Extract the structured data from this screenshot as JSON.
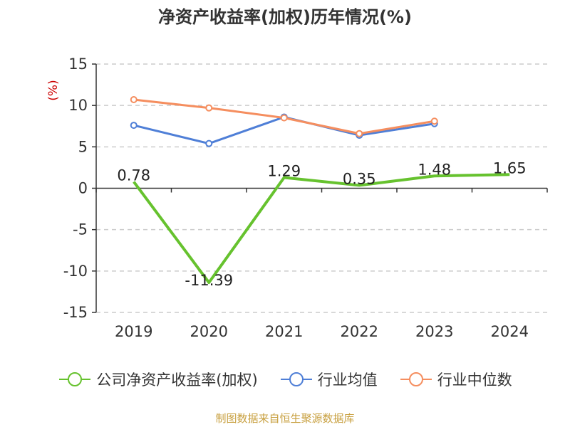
{
  "chart_data": {
    "type": "line",
    "title": "净资产收益率(加权)历年情况(%)",
    "ylabel": "(%)",
    "categories": [
      "2019",
      "2020",
      "2021",
      "2022",
      "2023",
      "2024"
    ],
    "ylim": [
      -15,
      15
    ],
    "yticks": [
      15,
      10,
      5,
      0,
      -5,
      -10,
      -15
    ],
    "grid": true,
    "legend_position": "bottom",
    "series": [
      {
        "name": "公司净资产收益率(加权)",
        "color": "#66c22e",
        "values": [
          0.78,
          -11.39,
          1.29,
          0.35,
          1.48,
          1.65
        ],
        "labels": [
          "0.78",
          "-11.39",
          "1.29",
          "0.35",
          "1.48",
          "1.65"
        ]
      },
      {
        "name": "行业均值",
        "color": "#4f7fd7",
        "values": [
          7.6,
          5.4,
          8.6,
          6.4,
          7.8,
          null
        ]
      },
      {
        "name": "行业中位数",
        "color": "#f58e5f",
        "values": [
          10.7,
          9.7,
          8.5,
          6.6,
          8.1,
          null
        ]
      }
    ]
  },
  "source": "制图数据来自恒生聚源数据库"
}
